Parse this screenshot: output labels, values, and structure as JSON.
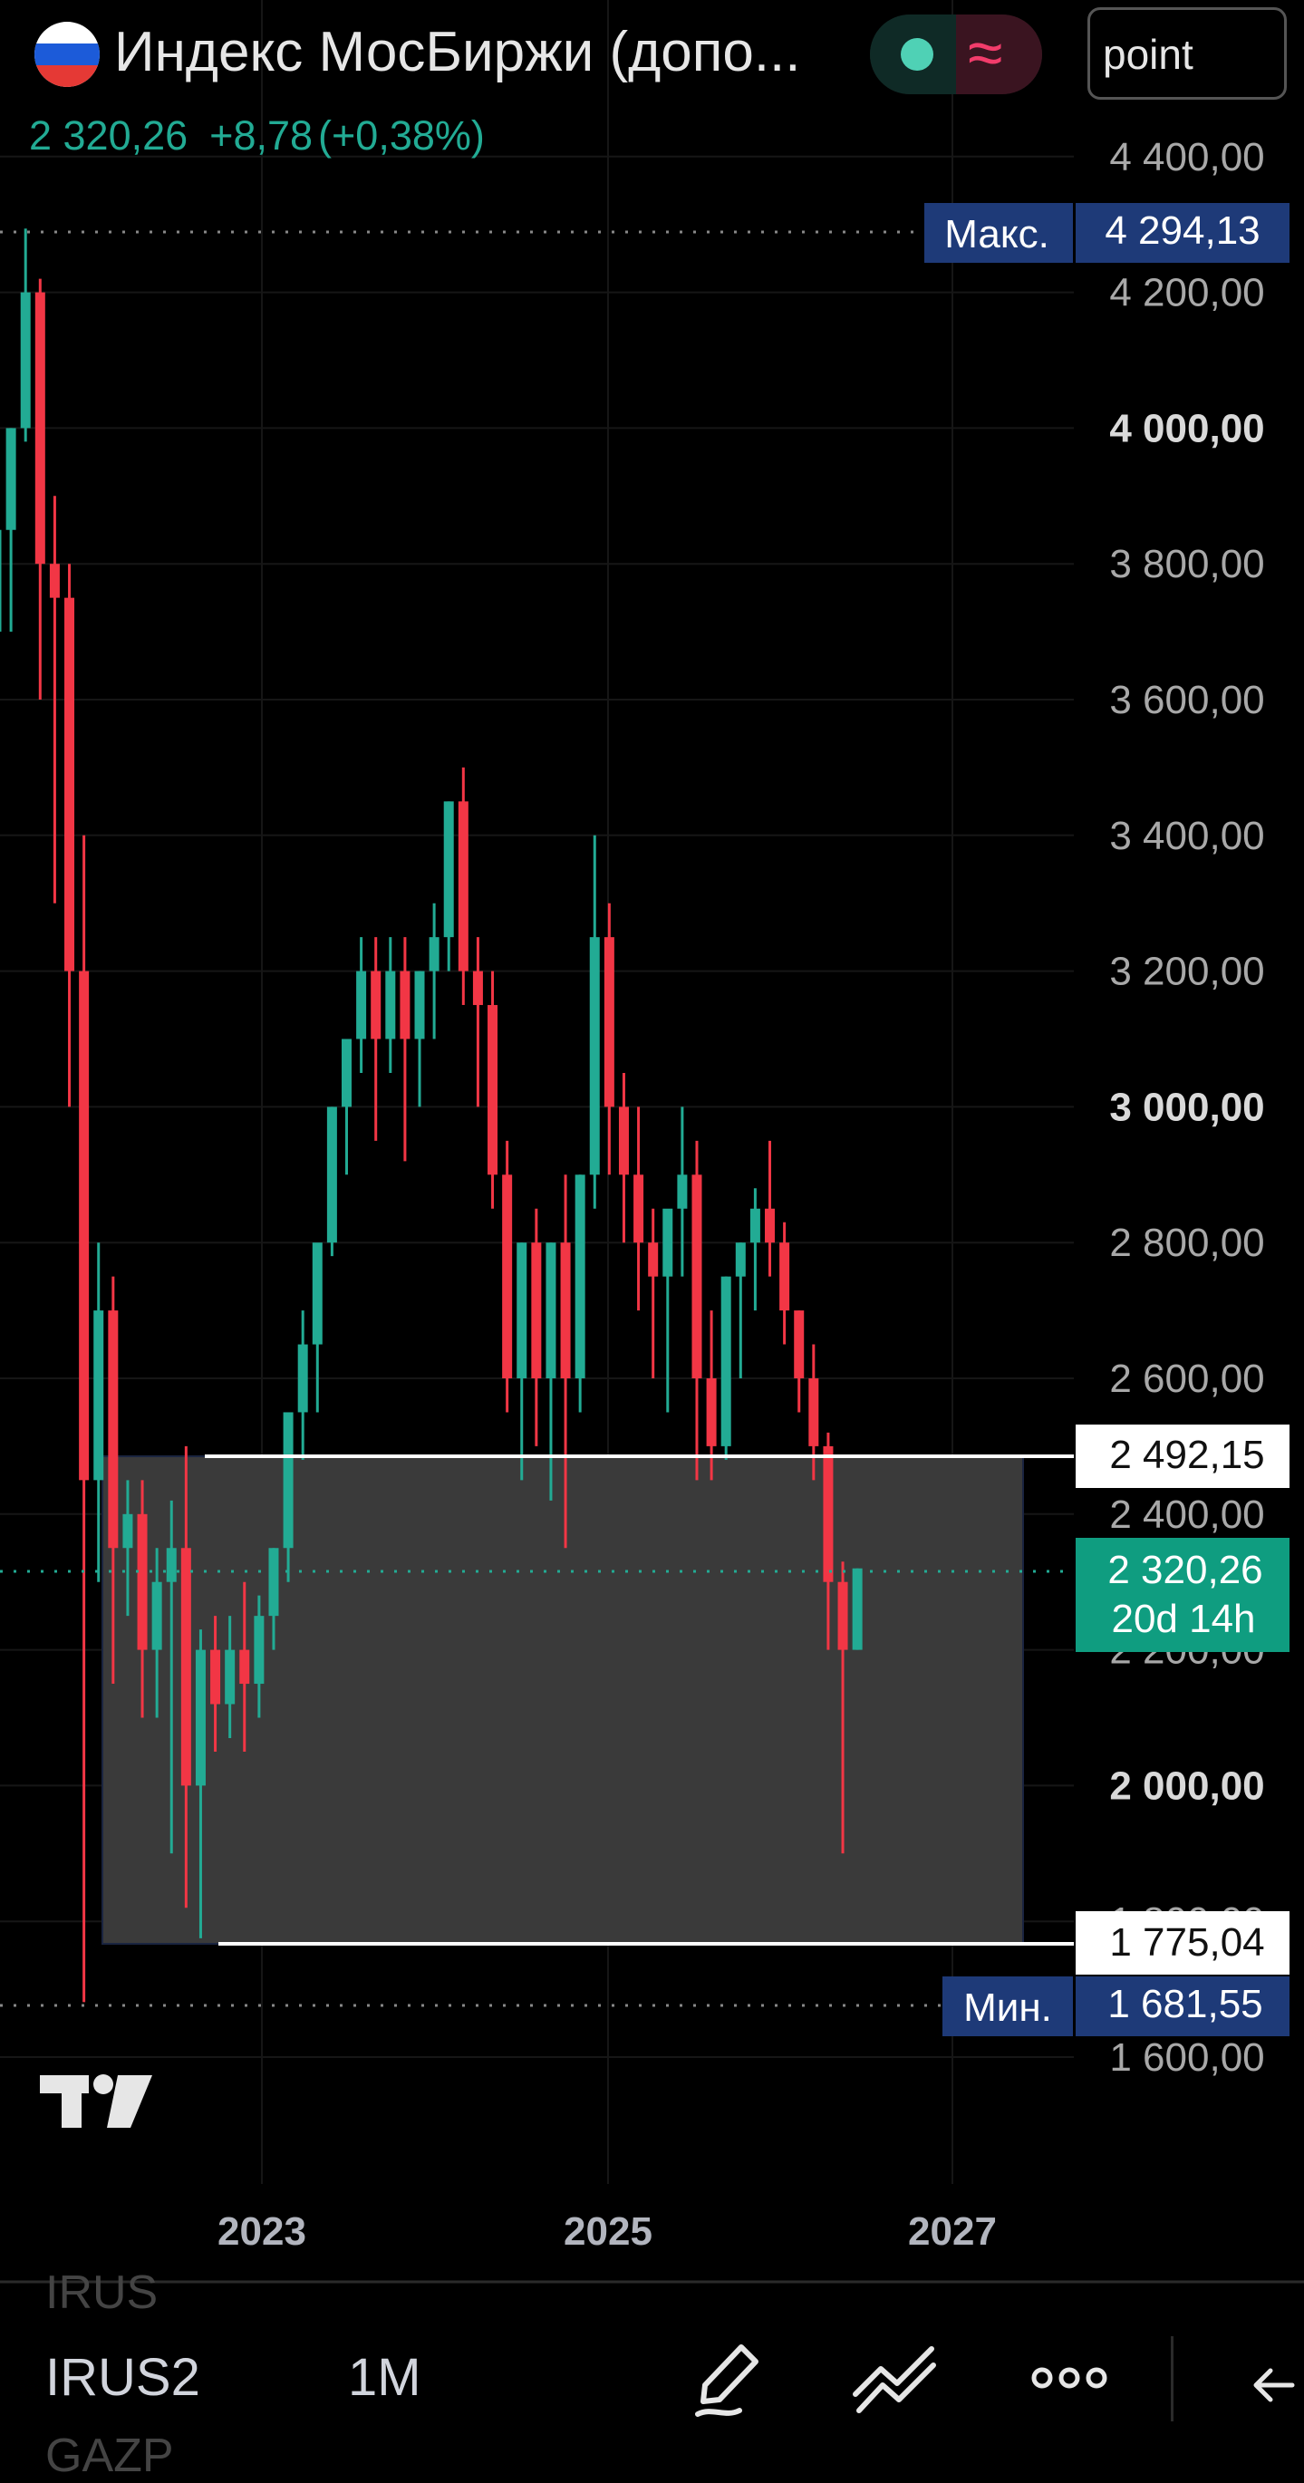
{
  "header": {
    "title": "Индекс МосБиржи (допо...",
    "last_price": "2 320,26",
    "change": "+8,78",
    "change_pct": "(+0,38%)",
    "mode": "point"
  },
  "price_axis": {
    "ticks": [
      "4 400,00",
      "4 200,00",
      "4 000,00",
      "3 800,00",
      "3 600,00",
      "3 400,00",
      "3 200,00",
      "3 000,00",
      "2 800,00",
      "2 600,00",
      "2 400,00",
      "2 200,00",
      "2 000,00",
      "1 800,00",
      "1 600,00"
    ],
    "max_label": "Макс.",
    "max_value": "4 294,13",
    "min_label": "Мин.",
    "min_value": "1 681,55",
    "level_high": "2 492,15",
    "level_low": "1 775,04",
    "current_price": "2 320,26",
    "countdown": "20d 14h"
  },
  "time_axis": {
    "ticks": [
      "2023",
      "2025",
      "2027"
    ]
  },
  "toolbar": {
    "ghost_above": "IRUS",
    "symbol": "IRUS2",
    "timeframe": "1M",
    "ghost_below": "GAZP",
    "icons": [
      "pencil-icon",
      "trendline-icon",
      "more-icon",
      "undo-icon"
    ]
  },
  "colors": {
    "up": "#22ab94",
    "down": "#f23645",
    "background": "#000000",
    "label_blue": "#1e3a78"
  }
}
